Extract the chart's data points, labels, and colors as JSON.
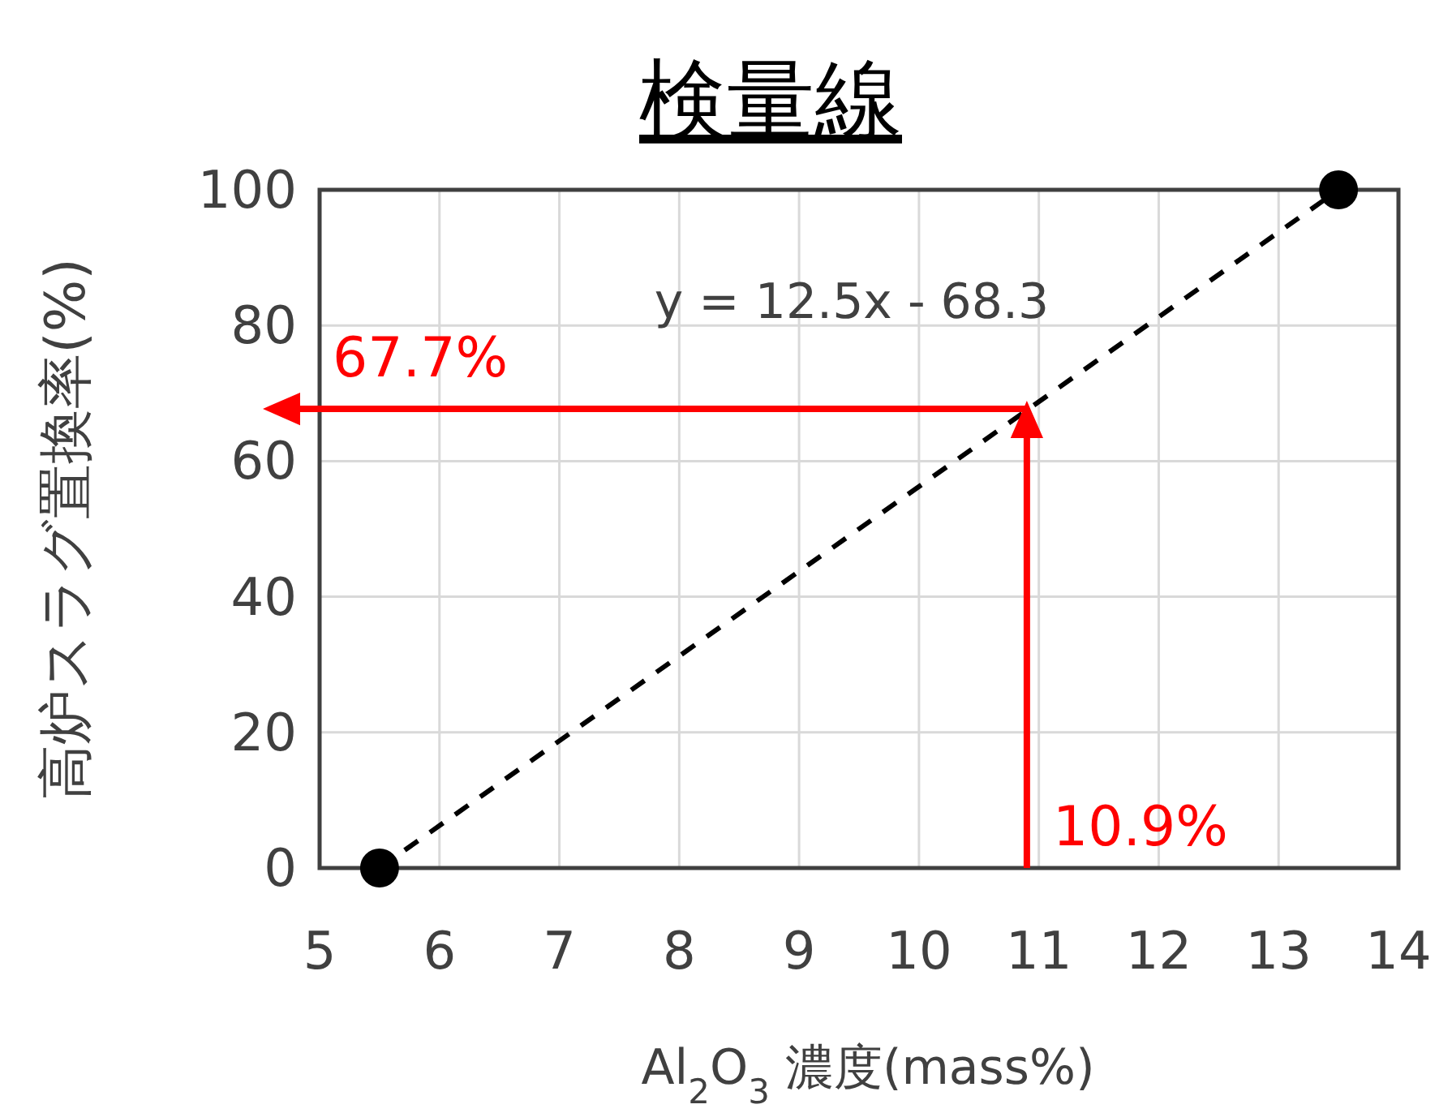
{
  "chart_data": {
    "type": "line",
    "title": "検量線",
    "xlabel": "Al$_{2}$O$_{3}$ 濃度(mass%)",
    "ylabel": "高炉スラグ置換率(%)",
    "xlim": [
      5,
      14
    ],
    "xticks": [
      5,
      6,
      7,
      8,
      9,
      10,
      11,
      12,
      13,
      14
    ],
    "ylim": [
      0,
      100
    ],
    "yticks": [
      0,
      20,
      40,
      60,
      80,
      100
    ],
    "grid": true,
    "marker": "circle",
    "line_style": "dashed",
    "series": [
      {
        "x": [
          5.5,
          13.5
        ],
        "values": [
          0,
          100
        ],
        "color": "#000000"
      }
    ],
    "annotations": [
      "y = 12.5x - 68.3",
      {
        "text": "67.7%",
        "x": 10.9,
        "y": 67.7
      },
      "10.9%"
    ]
  }
}
